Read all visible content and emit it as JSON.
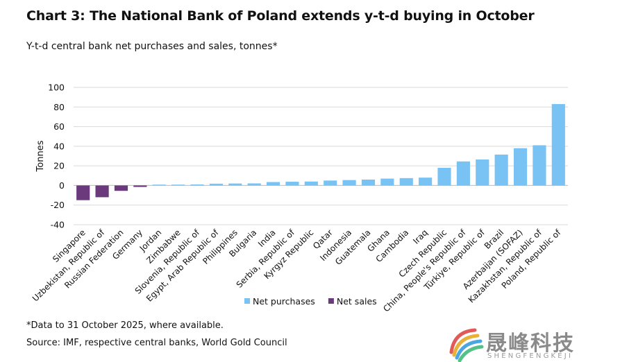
{
  "title": "Chart 3: The National Bank of Poland extends y-t-d buying in October",
  "subtitle": "Y-t-d central bank net purchases and sales, tonnes*",
  "footnote": "*Data to 31 October 2025, where available.",
  "source": "Source: IMF, respective central banks, World Gold Council",
  "watermark": {
    "cn": "晟峰科技",
    "en": "SHENGFENGKEJI"
  },
  "colors": {
    "purchase": "#79c3f4",
    "sale": "#6a3a7c",
    "grid": "#d9d9d9",
    "text": "#111111"
  },
  "chart_data": {
    "type": "bar",
    "ylabel": "Tonnes",
    "ylim": [
      -40,
      100
    ],
    "yticks": [
      100,
      80,
      60,
      40,
      20,
      0,
      -20,
      -40
    ],
    "grid": true,
    "legend_position": "bottom-center",
    "legend": [
      {
        "name": "Net purchases",
        "kind": "purchase"
      },
      {
        "name": "Net sales",
        "kind": "sale"
      }
    ],
    "categories": [
      "Singapore",
      "Uzbekistan, Republic of",
      "Russian Federation",
      "Germany",
      "Jordan",
      "Zimbabwe",
      "Slovenia, Republic of",
      "Egypt, Arab Republic of",
      "Philippines",
      "Bulgaria",
      "India",
      "Serbia, Republic of",
      "Kyrgyz Republic",
      "Qatar",
      "Indonesia",
      "Guatemala",
      "Ghana",
      "Cambodia",
      "Iraq",
      "Czech Republic",
      "China, People's Republic of",
      "Türkiye, Republic of",
      "Brazil",
      "Azerbaijan (SOFAZ)",
      "Kazakhstan, Republic of",
      "Poland, Republic of"
    ],
    "values": [
      -15,
      -12,
      -5.5,
      -1.5,
      0.3,
      0.5,
      1,
      1.8,
      2,
      2.1,
      3.5,
      3.8,
      4,
      5,
      5.5,
      6,
      7,
      7.5,
      8,
      18,
      24.5,
      26.5,
      31.5,
      38,
      41,
      83
    ]
  }
}
